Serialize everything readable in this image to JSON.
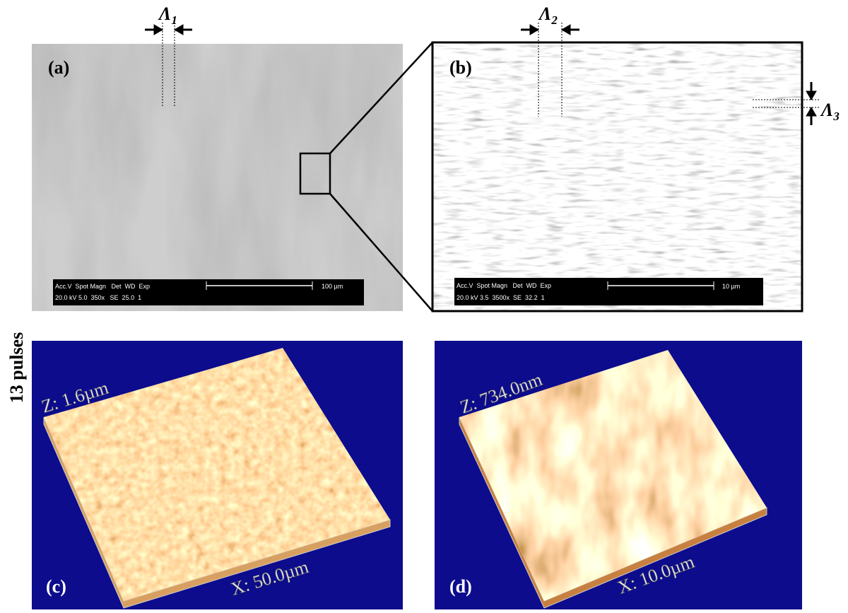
{
  "figure": {
    "side_label": "13 pulses",
    "periods": [
      {
        "symbol": "Λ",
        "index": "1"
      },
      {
        "symbol": "Λ",
        "index": "2"
      },
      {
        "symbol": "Λ",
        "index": "3"
      }
    ],
    "panels": [
      {
        "label": "(a)",
        "info_header": "Acc.V  Spot Magn   Det  WD  Exp",
        "info_values": "20.0 kV 5.0  350x   SE  25.0  1",
        "scale_bar": "100 µm"
      },
      {
        "label": "(b)",
        "info_header": "Acc.V  Spot Magn   Det  WD  Exp",
        "info_values": "20.0 kV 3.5  3500x  SE  32.2  1",
        "scale_bar": "10 µm"
      },
      {
        "label": "(c)",
        "z_label": "Z: 1.6µm",
        "x_label": "X: 50.0µm"
      },
      {
        "label": "(d)",
        "z_label": "Z: 734.0nm",
        "x_label": "X: 10.0µm"
      }
    ]
  }
}
